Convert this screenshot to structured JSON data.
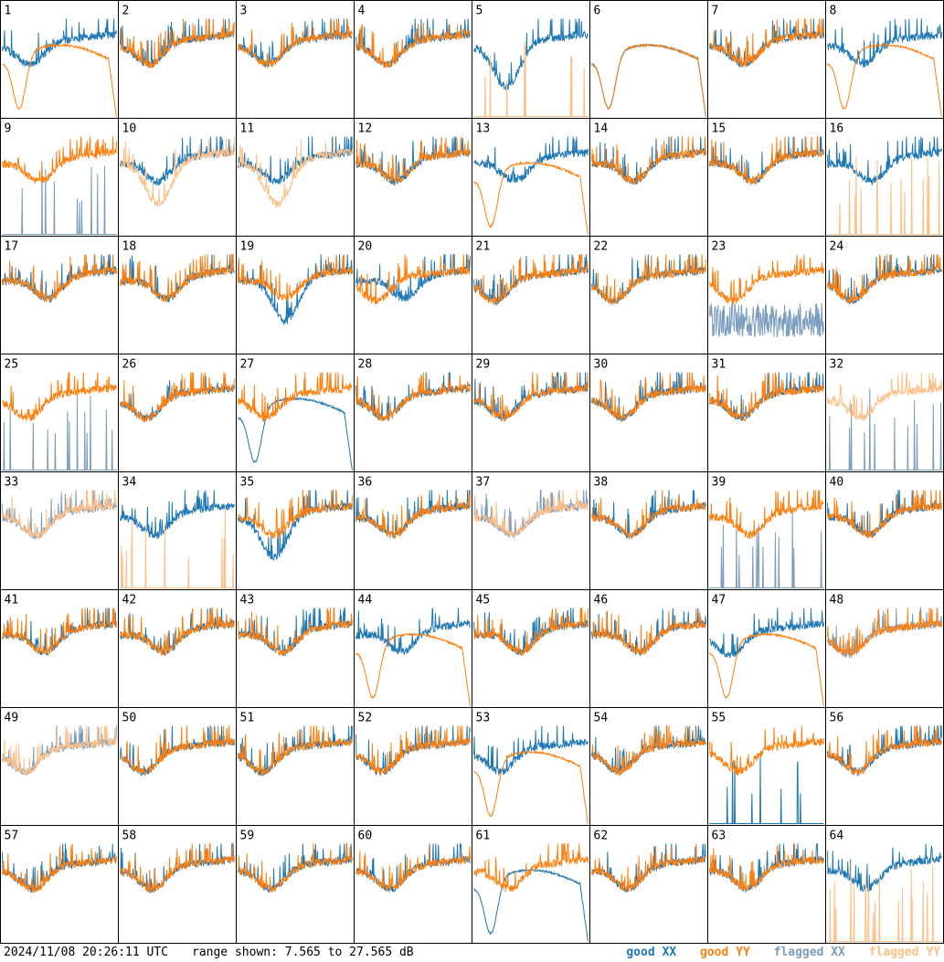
{
  "footer": {
    "timestamp": "2024/11/08 20:26:11 UTC",
    "range": "range shown: 7.565 to 27.565 dB"
  },
  "legend": [
    {
      "label": "good XX",
      "color": "#1f77b4"
    },
    {
      "label": "good YY",
      "color": "#ff7f0e"
    },
    {
      "label": "flagged XX",
      "color": "#7a9cbf"
    },
    {
      "label": "flagged YY",
      "color": "#ffbf86"
    }
  ],
  "chart_data": {
    "type": "line",
    "grid_rows": 8,
    "grid_cols": 8,
    "ylim_db": [
      7.565,
      27.565
    ],
    "series_order": [
      "XX",
      "YY"
    ],
    "panels": [
      {
        "id": 1,
        "xx": "good",
        "yy": "good",
        "xx_kind": "normal",
        "yy_kind": "smooth"
      },
      {
        "id": 2,
        "xx": "good",
        "yy": "good",
        "xx_kind": "normal",
        "yy_kind": "normal"
      },
      {
        "id": 3,
        "xx": "good",
        "yy": "good",
        "xx_kind": "normal",
        "yy_kind": "normal"
      },
      {
        "id": 4,
        "xx": "good",
        "yy": "good",
        "xx_kind": "normal",
        "yy_kind": "normal"
      },
      {
        "id": 5,
        "xx": "good",
        "yy": "flagged",
        "xx_kind": "deep",
        "yy_kind": "spikes"
      },
      {
        "id": 6,
        "xx": "good",
        "yy": "good",
        "xx_kind": "smooth",
        "yy_kind": "smooth"
      },
      {
        "id": 7,
        "xx": "good",
        "yy": "good",
        "xx_kind": "normal",
        "yy_kind": "normal"
      },
      {
        "id": 8,
        "xx": "good",
        "yy": "good",
        "xx_kind": "normal",
        "yy_kind": "smooth"
      },
      {
        "id": 9,
        "xx": "flagged",
        "yy": "good",
        "xx_kind": "spikes",
        "yy_kind": "normal"
      },
      {
        "id": 10,
        "xx": "good",
        "yy": "flagged",
        "xx_kind": "normal",
        "yy_kind": "deep"
      },
      {
        "id": 11,
        "xx": "good",
        "yy": "flagged",
        "xx_kind": "normal",
        "yy_kind": "deep"
      },
      {
        "id": 12,
        "xx": "good",
        "yy": "good",
        "xx_kind": "normal",
        "yy_kind": "normal"
      },
      {
        "id": 13,
        "xx": "good",
        "yy": "good",
        "xx_kind": "normal",
        "yy_kind": "smooth"
      },
      {
        "id": 14,
        "xx": "good",
        "yy": "good",
        "xx_kind": "normal",
        "yy_kind": "normal"
      },
      {
        "id": 15,
        "xx": "good",
        "yy": "good",
        "xx_kind": "normal",
        "yy_kind": "normal"
      },
      {
        "id": 16,
        "xx": "good",
        "yy": "flagged",
        "xx_kind": "normal",
        "yy_kind": "spikes"
      },
      {
        "id": 17,
        "xx": "good",
        "yy": "good",
        "xx_kind": "normal",
        "yy_kind": "normal"
      },
      {
        "id": 18,
        "xx": "good",
        "yy": "good",
        "xx_kind": "normal",
        "yy_kind": "normal"
      },
      {
        "id": 19,
        "xx": "good",
        "yy": "good",
        "xx_kind": "deep",
        "yy_kind": "normal"
      },
      {
        "id": 20,
        "xx": "good",
        "yy": "good",
        "xx_kind": "normal",
        "yy_kind": "normal"
      },
      {
        "id": 21,
        "xx": "good",
        "yy": "good",
        "xx_kind": "normal",
        "yy_kind": "normal"
      },
      {
        "id": 22,
        "xx": "good",
        "yy": "good",
        "xx_kind": "normal",
        "yy_kind": "normal"
      },
      {
        "id": 23,
        "xx": "flagged",
        "yy": "good",
        "xx_kind": "low",
        "yy_kind": "normal"
      },
      {
        "id": 24,
        "xx": "good",
        "yy": "good",
        "xx_kind": "normal",
        "yy_kind": "normal"
      },
      {
        "id": 25,
        "xx": "flagged",
        "yy": "good",
        "xx_kind": "spikes",
        "yy_kind": "normal"
      },
      {
        "id": 26,
        "xx": "good",
        "yy": "good",
        "xx_kind": "normal",
        "yy_kind": "normal"
      },
      {
        "id": 27,
        "xx": "good",
        "yy": "good",
        "xx_kind": "smooth",
        "yy_kind": "normal"
      },
      {
        "id": 28,
        "xx": "good",
        "yy": "good",
        "xx_kind": "normal",
        "yy_kind": "normal"
      },
      {
        "id": 29,
        "xx": "good",
        "yy": "good",
        "xx_kind": "normal",
        "yy_kind": "normal"
      },
      {
        "id": 30,
        "xx": "good",
        "yy": "good",
        "xx_kind": "normal",
        "yy_kind": "normal"
      },
      {
        "id": 31,
        "xx": "good",
        "yy": "good",
        "xx_kind": "normal",
        "yy_kind": "normal"
      },
      {
        "id": 32,
        "xx": "flagged",
        "yy": "flagged",
        "xx_kind": "spikes",
        "yy_kind": "normal"
      },
      {
        "id": 33,
        "xx": "flagged",
        "yy": "flagged",
        "xx_kind": "normal",
        "yy_kind": "normal"
      },
      {
        "id": 34,
        "xx": "good",
        "yy": "flagged",
        "xx_kind": "normal",
        "yy_kind": "spikes"
      },
      {
        "id": 35,
        "xx": "good",
        "yy": "good",
        "xx_kind": "deep",
        "yy_kind": "normal"
      },
      {
        "id": 36,
        "xx": "good",
        "yy": "good",
        "xx_kind": "normal",
        "yy_kind": "normal"
      },
      {
        "id": 37,
        "xx": "flagged",
        "yy": "flagged",
        "xx_kind": "normal",
        "yy_kind": "normal"
      },
      {
        "id": 38,
        "xx": "good",
        "yy": "good",
        "xx_kind": "normal",
        "yy_kind": "normal"
      },
      {
        "id": 39,
        "xx": "flagged",
        "yy": "good",
        "xx_kind": "spikes",
        "yy_kind": "normal"
      },
      {
        "id": 40,
        "xx": "good",
        "yy": "good",
        "xx_kind": "normal",
        "yy_kind": "normal"
      },
      {
        "id": 41,
        "xx": "good",
        "yy": "good",
        "xx_kind": "normal",
        "yy_kind": "normal"
      },
      {
        "id": 42,
        "xx": "good",
        "yy": "good",
        "xx_kind": "normal",
        "yy_kind": "normal"
      },
      {
        "id": 43,
        "xx": "good",
        "yy": "good",
        "xx_kind": "normal",
        "yy_kind": "normal"
      },
      {
        "id": 44,
        "xx": "good",
        "yy": "good",
        "xx_kind": "normal",
        "yy_kind": "smooth"
      },
      {
        "id": 45,
        "xx": "good",
        "yy": "good",
        "xx_kind": "normal",
        "yy_kind": "normal"
      },
      {
        "id": 46,
        "xx": "good",
        "yy": "good",
        "xx_kind": "normal",
        "yy_kind": "normal"
      },
      {
        "id": 47,
        "xx": "good",
        "yy": "good",
        "xx_kind": "normal",
        "yy_kind": "smooth"
      },
      {
        "id": 48,
        "xx": "flagged",
        "yy": "good",
        "xx_kind": "normal",
        "yy_kind": "normal"
      },
      {
        "id": 49,
        "xx": "flagged",
        "yy": "flagged",
        "xx_kind": "normal",
        "yy_kind": "normal"
      },
      {
        "id": 50,
        "xx": "good",
        "yy": "good",
        "xx_kind": "normal",
        "yy_kind": "normal"
      },
      {
        "id": 51,
        "xx": "good",
        "yy": "good",
        "xx_kind": "normal",
        "yy_kind": "normal"
      },
      {
        "id": 52,
        "xx": "good",
        "yy": "good",
        "xx_kind": "normal",
        "yy_kind": "normal"
      },
      {
        "id": 53,
        "xx": "good",
        "yy": "good",
        "xx_kind": "normal",
        "yy_kind": "smooth"
      },
      {
        "id": 54,
        "xx": "good",
        "yy": "good",
        "xx_kind": "normal",
        "yy_kind": "normal"
      },
      {
        "id": 55,
        "xx": "good",
        "yy": "good",
        "xx_kind": "spikes",
        "yy_kind": "normal"
      },
      {
        "id": 56,
        "xx": "good",
        "yy": "good",
        "xx_kind": "normal",
        "yy_kind": "normal"
      },
      {
        "id": 57,
        "xx": "good",
        "yy": "good",
        "xx_kind": "normal",
        "yy_kind": "normal"
      },
      {
        "id": 58,
        "xx": "good",
        "yy": "good",
        "xx_kind": "normal",
        "yy_kind": "normal"
      },
      {
        "id": 59,
        "xx": "good",
        "yy": "good",
        "xx_kind": "normal",
        "yy_kind": "normal"
      },
      {
        "id": 60,
        "xx": "good",
        "yy": "good",
        "xx_kind": "normal",
        "yy_kind": "normal"
      },
      {
        "id": 61,
        "xx": "good",
        "yy": "good",
        "xx_kind": "smooth",
        "yy_kind": "normal"
      },
      {
        "id": 62,
        "xx": "good",
        "yy": "good",
        "xx_kind": "normal",
        "yy_kind": "normal"
      },
      {
        "id": 63,
        "xx": "good",
        "yy": "good",
        "xx_kind": "normal",
        "yy_kind": "normal"
      },
      {
        "id": 64,
        "xx": "good",
        "yy": "flagged",
        "xx_kind": "normal",
        "yy_kind": "spikes"
      }
    ]
  }
}
